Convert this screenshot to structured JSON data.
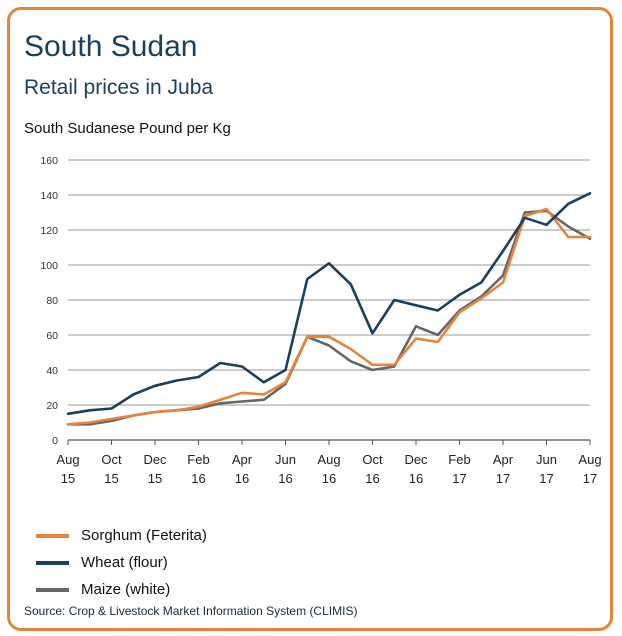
{
  "title": "South Sudan",
  "subtitle": "Retail prices in Juba",
  "source": "Source:  Crop & Livestock Market Information System (CLIMIS)",
  "chart_data": {
    "type": "line",
    "ylabel": "South Sudanese Pound per Kg",
    "ylim": [
      0,
      160
    ],
    "yticks": [
      0,
      20,
      40,
      60,
      80,
      100,
      120,
      140,
      160
    ],
    "xlim": [
      0,
      24
    ],
    "x_tick_labels": [
      {
        "x": 0,
        "line1": "Aug",
        "line2": "15"
      },
      {
        "x": 2,
        "line1": "Oct",
        "line2": "15"
      },
      {
        "x": 4,
        "line1": "Dec",
        "line2": "15"
      },
      {
        "x": 6,
        "line1": "Feb",
        "line2": "16"
      },
      {
        "x": 8,
        "line1": "Apr",
        "line2": "16"
      },
      {
        "x": 10,
        "line1": "Jun",
        "line2": "16"
      },
      {
        "x": 12,
        "line1": "Aug",
        "line2": "16"
      },
      {
        "x": 14,
        "line1": "Oct",
        "line2": "16"
      },
      {
        "x": 16,
        "line1": "Dec",
        "line2": "16"
      },
      {
        "x": 18,
        "line1": "Feb",
        "line2": "17"
      },
      {
        "x": 20,
        "line1": "Apr",
        "line2": "17"
      },
      {
        "x": 22,
        "line1": "Jun",
        "line2": "17"
      },
      {
        "x": 24,
        "line1": "Aug",
        "line2": "17"
      }
    ],
    "x": [
      0,
      1,
      2,
      3,
      4,
      5,
      6,
      7,
      8,
      9,
      10,
      11,
      12,
      13,
      14,
      15,
      16,
      17,
      18,
      19,
      20,
      21,
      22,
      23,
      24
    ],
    "grid": "horizontal",
    "legend_position": "bottom-left",
    "series": [
      {
        "name": "Sorghum (Feterita)",
        "color": "#e8833a",
        "values": [
          9,
          10,
          12,
          14,
          16,
          17,
          19,
          23,
          27,
          26,
          33,
          59,
          59,
          52,
          43,
          43,
          58,
          56,
          73,
          81,
          90,
          128,
          132,
          116,
          116
        ]
      },
      {
        "name": "Wheat (flour)",
        "color": "#1b3f5c",
        "values": [
          15,
          17,
          18,
          26,
          31,
          34,
          36,
          44,
          42,
          33,
          40,
          92,
          101,
          89,
          61,
          80,
          77,
          74,
          83,
          90,
          108,
          127,
          123,
          135,
          141
        ]
      },
      {
        "name": "Maize (white)",
        "color": "#666666",
        "values": [
          9,
          9,
          11,
          14,
          16,
          17,
          18,
          21,
          22,
          23,
          32,
          59,
          54,
          45,
          40,
          42,
          65,
          60,
          74,
          82,
          94,
          130,
          131,
          122,
          115
        ]
      }
    ]
  }
}
